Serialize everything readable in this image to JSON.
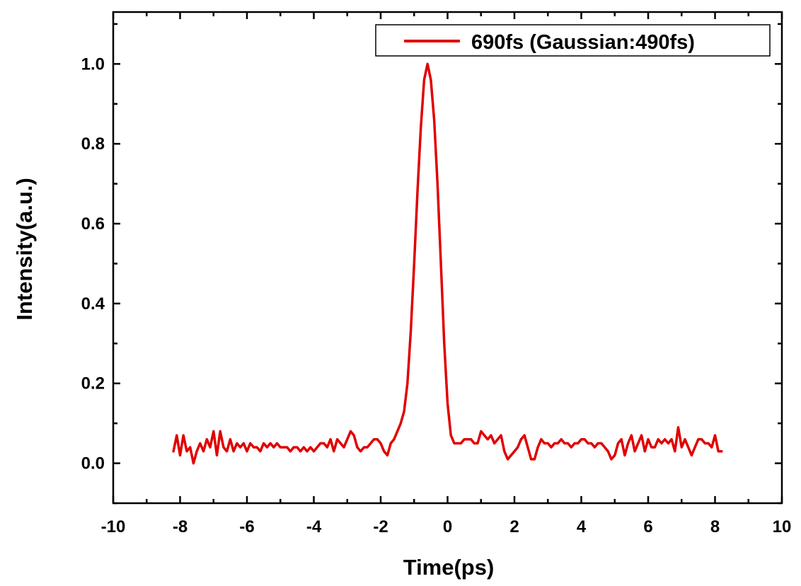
{
  "chart_data": {
    "type": "line",
    "xlabel": "Time(ps)",
    "ylabel": "Intensity(a.u.)",
    "xlim": [
      -10,
      10
    ],
    "ylim": [
      -0.1,
      1.13
    ],
    "x_ticks": [
      -10,
      -8,
      -6,
      -4,
      -2,
      0,
      2,
      4,
      6,
      8,
      10
    ],
    "x_tick_labels": [
      "-10",
      "-8",
      "-6",
      "-4",
      "-2",
      "0",
      "2",
      "4",
      "6",
      "8",
      "10"
    ],
    "y_ticks": [
      0.0,
      0.2,
      0.4,
      0.6,
      0.8,
      1.0
    ],
    "y_tick_labels": [
      "0.0",
      "0.2",
      "0.4",
      "0.6",
      "0.8",
      "1.0"
    ],
    "legend_position": "top-right",
    "grid": false,
    "series": [
      {
        "name": "690fs (Gaussian:490fs)",
        "color": "#e00000",
        "x": [
          -8.2,
          -8.1,
          -8.0,
          -7.9,
          -7.8,
          -7.7,
          -7.6,
          -7.5,
          -7.4,
          -7.3,
          -7.2,
          -7.1,
          -7.0,
          -6.9,
          -6.8,
          -6.7,
          -6.6,
          -6.5,
          -6.4,
          -6.3,
          -6.2,
          -6.1,
          -6.0,
          -5.9,
          -5.8,
          -5.7,
          -5.6,
          -5.5,
          -5.4,
          -5.3,
          -5.2,
          -5.1,
          -5.0,
          -4.9,
          -4.8,
          -4.7,
          -4.6,
          -4.5,
          -4.4,
          -4.3,
          -4.2,
          -4.1,
          -4.0,
          -3.9,
          -3.8,
          -3.7,
          -3.6,
          -3.5,
          -3.4,
          -3.3,
          -3.2,
          -3.1,
          -3.0,
          -2.9,
          -2.8,
          -2.7,
          -2.6,
          -2.5,
          -2.4,
          -2.3,
          -2.2,
          -2.1,
          -2.0,
          -1.9,
          -1.8,
          -1.7,
          -1.6,
          -1.5,
          -1.4,
          -1.3,
          -1.2,
          -1.1,
          -1.0,
          -0.9,
          -0.8,
          -0.7,
          -0.6,
          -0.5,
          -0.4,
          -0.3,
          -0.2,
          -0.1,
          0.0,
          0.1,
          0.2,
          0.3,
          0.4,
          0.5,
          0.6,
          0.7,
          0.8,
          0.9,
          1.0,
          1.1,
          1.2,
          1.3,
          1.4,
          1.5,
          1.6,
          1.7,
          1.8,
          1.9,
          2.0,
          2.1,
          2.2,
          2.3,
          2.4,
          2.5,
          2.6,
          2.7,
          2.8,
          2.9,
          3.0,
          3.1,
          3.2,
          3.3,
          3.4,
          3.5,
          3.6,
          3.7,
          3.8,
          3.9,
          4.0,
          4.1,
          4.2,
          4.3,
          4.4,
          4.5,
          4.6,
          4.7,
          4.8,
          4.9,
          5.0,
          5.1,
          5.2,
          5.3,
          5.4,
          5.5,
          5.6,
          5.7,
          5.8,
          5.9,
          6.0,
          6.1,
          6.2,
          6.3,
          6.4,
          6.5,
          6.6,
          6.7,
          6.8,
          6.9,
          7.0,
          7.1,
          7.2,
          7.3,
          7.4,
          7.5,
          7.6,
          7.7,
          7.8,
          7.9,
          8.0,
          8.1,
          8.2
        ],
        "values": [
          0.03,
          0.07,
          0.02,
          0.07,
          0.03,
          0.04,
          0.0,
          0.03,
          0.05,
          0.03,
          0.06,
          0.04,
          0.08,
          0.02,
          0.08,
          0.04,
          0.03,
          0.06,
          0.03,
          0.05,
          0.04,
          0.05,
          0.03,
          0.05,
          0.04,
          0.04,
          0.03,
          0.05,
          0.04,
          0.05,
          0.04,
          0.05,
          0.04,
          0.04,
          0.04,
          0.03,
          0.04,
          0.04,
          0.03,
          0.04,
          0.03,
          0.04,
          0.03,
          0.04,
          0.05,
          0.05,
          0.04,
          0.06,
          0.03,
          0.06,
          0.05,
          0.04,
          0.06,
          0.08,
          0.07,
          0.04,
          0.03,
          0.04,
          0.04,
          0.05,
          0.06,
          0.06,
          0.05,
          0.03,
          0.02,
          0.05,
          0.06,
          0.08,
          0.1,
          0.13,
          0.2,
          0.33,
          0.5,
          0.68,
          0.84,
          0.96,
          1.0,
          0.96,
          0.86,
          0.7,
          0.5,
          0.3,
          0.15,
          0.07,
          0.05,
          0.05,
          0.05,
          0.06,
          0.06,
          0.06,
          0.05,
          0.05,
          0.08,
          0.07,
          0.06,
          0.07,
          0.05,
          0.06,
          0.07,
          0.03,
          0.01,
          0.02,
          0.03,
          0.04,
          0.06,
          0.07,
          0.04,
          0.01,
          0.01,
          0.04,
          0.06,
          0.05,
          0.05,
          0.04,
          0.05,
          0.05,
          0.06,
          0.05,
          0.05,
          0.04,
          0.05,
          0.05,
          0.06,
          0.06,
          0.05,
          0.05,
          0.04,
          0.05,
          0.05,
          0.04,
          0.03,
          0.01,
          0.02,
          0.05,
          0.06,
          0.02,
          0.05,
          0.07,
          0.03,
          0.05,
          0.07,
          0.03,
          0.06,
          0.04,
          0.04,
          0.06,
          0.05,
          0.06,
          0.05,
          0.06,
          0.03,
          0.09,
          0.04,
          0.06,
          0.04,
          0.02,
          0.04,
          0.06,
          0.06,
          0.05,
          0.05,
          0.04,
          0.07,
          0.03,
          0.03
        ]
      }
    ]
  }
}
